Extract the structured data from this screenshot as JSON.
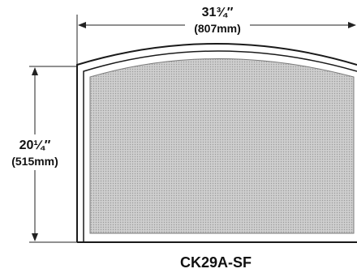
{
  "diagram": {
    "model": "CK29A-SF",
    "width_dimension": {
      "imperial": "31¾″",
      "metric": "(807mm)"
    },
    "height_dimension": {
      "imperial": "20¼″",
      "metric": "(515mm)"
    },
    "colors": {
      "outline": "#1a1a1a",
      "mesh_fill": "#c9c9c9",
      "mesh_dot": "#9a9a9a",
      "dimension_line": "#222222"
    }
  }
}
